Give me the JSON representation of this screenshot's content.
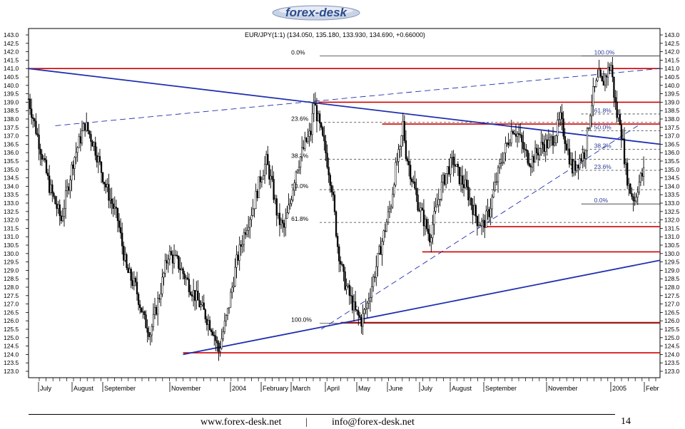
{
  "brand": {
    "logo_text": "forex-desk"
  },
  "footer": {
    "website": "www.forex-desk.net",
    "separator": "|",
    "email": "info@forex-desk.net",
    "page_number": "14"
  },
  "chart_data": {
    "type": "candlestick",
    "title": "EUR/JPY(1:1) (134.050, 135.180, 133.930, 134.690, +0.66000)",
    "ylim": [
      122.5,
      143.25
    ],
    "y_ticks": [
      "143.0",
      "142.5",
      "142.0",
      "141.5",
      "141.0",
      "140.5",
      "140.0",
      "139.5",
      "139.0",
      "138.5",
      "138.0",
      "137.5",
      "137.0",
      "136.5",
      "136.0",
      "135.5",
      "135.0",
      "134.5",
      "134.0",
      "133.5",
      "133.0",
      "132.5",
      "132.0",
      "131.5",
      "131.0",
      "130.5",
      "130.0",
      "129.5",
      "129.0",
      "128.5",
      "128.0",
      "127.5",
      "127.0",
      "126.5",
      "126.0",
      "125.5",
      "125.0",
      "124.5",
      "124.0",
      "123.5",
      "123.0"
    ],
    "x_labels": [
      "July",
      "August",
      "September",
      "November",
      "2004",
      "February",
      "March",
      "April",
      "May",
      "June",
      "July",
      "August",
      "September",
      "November",
      "2005",
      "Febr"
    ],
    "price_path": [
      [
        0,
        139.2
      ],
      [
        6,
        137.0
      ],
      [
        14,
        134.0
      ],
      [
        22,
        132.0
      ],
      [
        30,
        135.5
      ],
      [
        38,
        137.7
      ],
      [
        44,
        136.5
      ],
      [
        52,
        134.0
      ],
      [
        60,
        132.0
      ],
      [
        66,
        129.0
      ],
      [
        72,
        128.0
      ],
      [
        78,
        126.0
      ],
      [
        82,
        125.3
      ],
      [
        88,
        127.5
      ],
      [
        94,
        130.0
      ],
      [
        100,
        129.5
      ],
      [
        106,
        128.5
      ],
      [
        112,
        127.5
      ],
      [
        118,
        126.5
      ],
      [
        124,
        125.5
      ],
      [
        128,
        124.2
      ],
      [
        134,
        126.5
      ],
      [
        140,
        129.5
      ],
      [
        146,
        131.5
      ],
      [
        152,
        133.0
      ],
      [
        156,
        134.5
      ],
      [
        160,
        135.5
      ],
      [
        164,
        134.0
      ],
      [
        168,
        132.0
      ],
      [
        172,
        131.5
      ],
      [
        176,
        133.0
      ],
      [
        180,
        135.0
      ],
      [
        186,
        136.5
      ],
      [
        190,
        137.2
      ],
      [
        192,
        139.0
      ],
      [
        196,
        137.5
      ],
      [
        200,
        136.0
      ],
      [
        204,
        134.0
      ],
      [
        208,
        130.5
      ],
      [
        212,
        128.5
      ],
      [
        216,
        127.5
      ],
      [
        220,
        126.5
      ],
      [
        224,
        126.0
      ],
      [
        228,
        127.0
      ],
      [
        232,
        128.5
      ],
      [
        236,
        130.0
      ],
      [
        240,
        131.5
      ],
      [
        244,
        133.0
      ],
      [
        246,
        134.5
      ],
      [
        248,
        135.5
      ],
      [
        250,
        136.0
      ],
      [
        252,
        137.7
      ],
      [
        254,
        136.0
      ],
      [
        258,
        134.5
      ],
      [
        262,
        133.0
      ],
      [
        266,
        132.0
      ],
      [
        270,
        131.0
      ],
      [
        274,
        132.5
      ],
      [
        278,
        134.0
      ],
      [
        282,
        135.0
      ],
      [
        286,
        135.5
      ],
      [
        290,
        134.5
      ],
      [
        294,
        134.0
      ],
      [
        298,
        133.0
      ],
      [
        302,
        132.0
      ],
      [
        306,
        131.7
      ],
      [
        310,
        132.5
      ],
      [
        314,
        134.0
      ],
      [
        318,
        135.5
      ],
      [
        322,
        136.5
      ],
      [
        326,
        137.5
      ],
      [
        330,
        137.0
      ],
      [
        334,
        136.0
      ],
      [
        338,
        135.5
      ],
      [
        342,
        136.0
      ],
      [
        346,
        136.5
      ],
      [
        350,
        136.5
      ],
      [
        354,
        137.0
      ],
      [
        358,
        138.0
      ],
      [
        362,
        136.5
      ],
      [
        366,
        135.0
      ],
      [
        370,
        135.5
      ],
      [
        374,
        136.0
      ],
      [
        376,
        137.0
      ],
      [
        378,
        138.5
      ],
      [
        380,
        139.5
      ],
      [
        382,
        140.0
      ],
      [
        384,
        140.5
      ],
      [
        386,
        140.0
      ],
      [
        388,
        140.5
      ],
      [
        390,
        140.9
      ],
      [
        392,
        141.2
      ],
      [
        394,
        139.5
      ],
      [
        396,
        138.2
      ],
      [
        398,
        138.0
      ],
      [
        400,
        136.5
      ],
      [
        402,
        135.0
      ],
      [
        404,
        134.0
      ],
      [
        406,
        133.5
      ],
      [
        408,
        133.2
      ],
      [
        410,
        134.0
      ],
      [
        412,
        134.5
      ],
      [
        414,
        134.8
      ]
    ],
    "resistance_lines": [
      {
        "y": 141.0,
        "x_start": 0,
        "x_end": 425
      },
      {
        "y": 139.0,
        "x_start": 195,
        "x_end": 425
      },
      {
        "y": 137.7,
        "x_start": 238,
        "x_end": 425
      },
      {
        "y": 131.6,
        "x_start": 306,
        "x_end": 425
      },
      {
        "y": 130.1,
        "x_start": 265,
        "x_end": 425
      },
      {
        "y": 125.9,
        "x_start": 210,
        "x_end": 425
      },
      {
        "y": 124.1,
        "x_start": 104,
        "x_end": 425
      }
    ],
    "trend_lines": [
      {
        "style": "solid",
        "points": [
          [
            0,
            141.0
          ],
          [
            425,
            136.5
          ]
        ]
      },
      {
        "style": "solid",
        "points": [
          [
            104,
            124.0
          ],
          [
            425,
            129.6
          ]
        ]
      },
      {
        "style": "dashed",
        "points": [
          [
            18,
            137.6
          ],
          [
            425,
            141.0
          ]
        ]
      },
      {
        "style": "dashed",
        "points": [
          [
            197,
            125.5
          ],
          [
            410,
            137.6
          ]
        ]
      }
    ],
    "fib_left": {
      "x_start": 196,
      "x_end": 425,
      "levels": [
        {
          "label": "0.0%",
          "y": 141.75
        },
        {
          "label": "23.6%",
          "y": 137.8
        },
        {
          "label": "38.2%",
          "y": 135.6
        },
        {
          "label": "50.0%",
          "y": 133.8
        },
        {
          "label": "61.8%",
          "y": 131.85
        },
        {
          "label": "100.0%",
          "y": 125.85
        }
      ]
    },
    "fib_right": {
      "x_start": 372,
      "x_end": 425,
      "levels": [
        {
          "label": "100.0%",
          "y": 141.75
        },
        {
          "label": "61.8%",
          "y": 138.3
        },
        {
          "label": "50.0%",
          "y": 137.3
        },
        {
          "label": "38.2%",
          "y": 136.2
        },
        {
          "label": "23.6%",
          "y": 134.95
        },
        {
          "label": "0.0%",
          "y": 132.95
        }
      ]
    }
  }
}
